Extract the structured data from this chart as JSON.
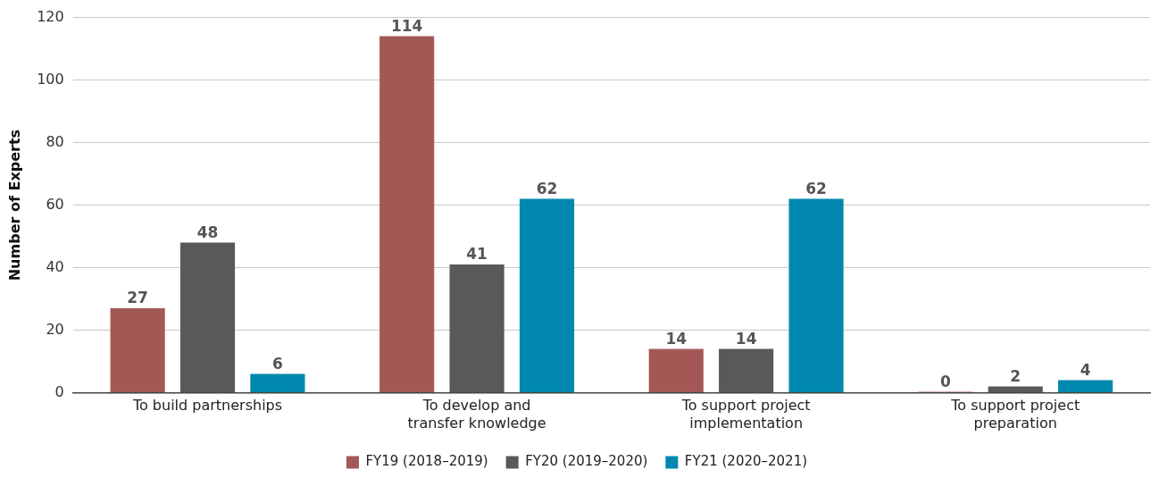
{
  "chart_data": {
    "type": "bar",
    "ylabel": "Number of Experts",
    "categories": [
      "To build partnerships",
      "To develop and transfer knowledge",
      "To support project implementation",
      "To support project preparation"
    ],
    "series": [
      {
        "name": "FY19 (2018–2019)",
        "color": "#a45856",
        "values": [
          27,
          114,
          14,
          0
        ]
      },
      {
        "name": "FY20 (2019–2020)",
        "color": "#58595b",
        "values": [
          48,
          41,
          14,
          2
        ]
      },
      {
        "name": "FY21 (2020–2021)",
        "color": "#0088ae",
        "values": [
          6,
          62,
          62,
          4
        ]
      }
    ],
    "ylim": [
      0,
      120
    ],
    "yticks": [
      0,
      20,
      40,
      60,
      80,
      100,
      120
    ],
    "grid": "y",
    "legend": "bottom",
    "data_labels": true
  }
}
